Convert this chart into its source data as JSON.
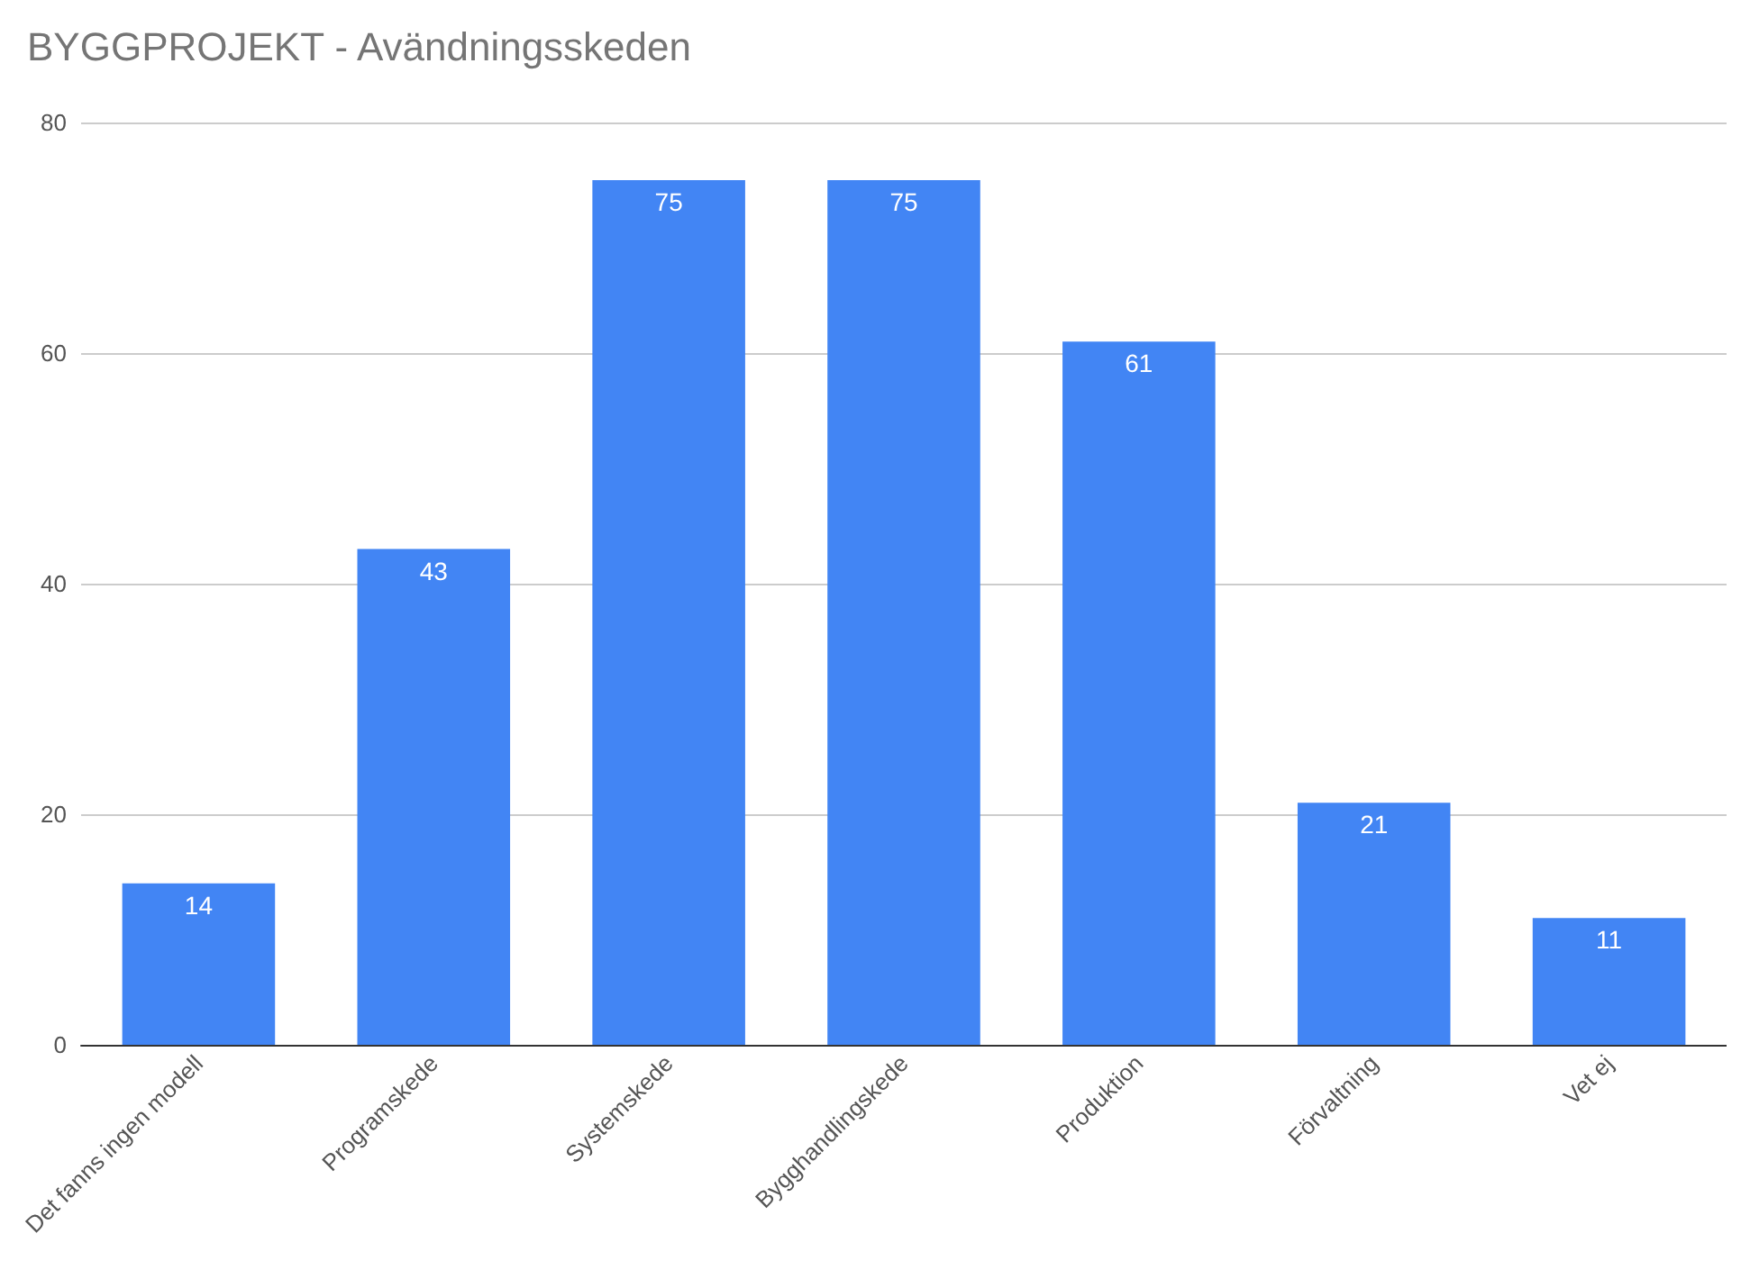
{
  "chart_data": {
    "type": "bar",
    "title": "BYGGPROJEKT - Avändningsskeden",
    "categories": [
      "Det fanns ingen modell",
      "Programskede",
      "Systemskede",
      "Bygghandlingskede",
      "Produktion",
      "Förvaltning",
      "Vet ej"
    ],
    "values": [
      14,
      43,
      75,
      75,
      61,
      21,
      11
    ],
    "color": "#4285f4",
    "ylim": [
      0,
      80
    ],
    "yticks": [
      0,
      20,
      40,
      60,
      80
    ],
    "grid": "y",
    "data_labels": true
  }
}
